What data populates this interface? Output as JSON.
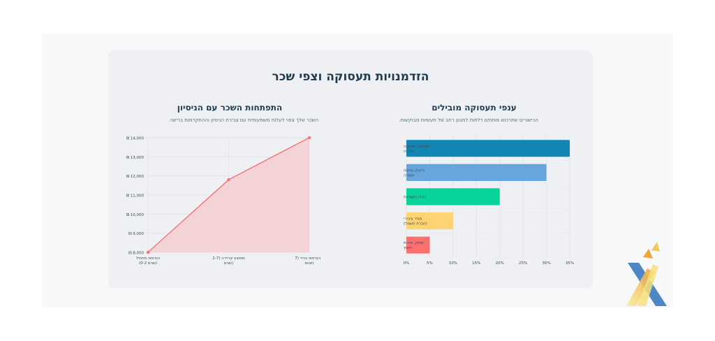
{
  "page": {
    "title": "הזדמנויות תעסוקה וצפי שכר"
  },
  "left_section": {
    "title": "התפתחות השכר עם הניסיון",
    "subtitle": "השכר שלך צפוי לעלות משמעותית עם צבירת הניסיון וההתקדמות ברישוי."
  },
  "right_section": {
    "title": "ענפי תעסוקה מובילים",
    "subtitle": "הכישורים שתרכוש פותחים דלתות למגוון רחב של תעשיות מבוקשות."
  },
  "chart_data": [
    {
      "type": "area",
      "x": [
        [
          "הנדסאי מתחיל",
          "(0-2 שנים)"
        ],
        [
          "ממוצע קריירה (2-7",
          "שנים)"
        ],
        [
          "הנדסאי בכיר (7+",
          "שנים)"
        ]
      ],
      "values": [
        8000,
        11800,
        14000
      ],
      "ylim": [
        8000,
        14000
      ],
      "yticks": [
        "₪ 8,000",
        "₪ 9,000",
        "₪ 10,000",
        "₪ 11,000",
        "₪ 12,000",
        "₪ 13,000",
        "₪ 14,000"
      ],
      "ytick_values": [
        8000,
        9000,
        10000,
        11000,
        12000,
        13000,
        14000
      ],
      "grid": true,
      "color": "#f47a7a",
      "fill": "#f4d3d6"
    },
    {
      "type": "bar",
      "orientation": "horizontal",
      "categories": [
        [
          "תעשייה, אחזקה",
          "ובקרה"
        ],
        [
          "הייטק ופיתוח",
          "חומרה"
        ],
        [
          "בנייה ותשתיות"
        ],
        [
          "מגזר ציבורי",
          "(חברת חשמל)"
        ],
        [
          "שיווק, שירות",
          "וייעוץ"
        ]
      ],
      "values": [
        35,
        30,
        20,
        10,
        5
      ],
      "colors": [
        "#1186b4",
        "#66a6dc",
        "#07d39b",
        "#fdd471",
        "#fb6f6f"
      ],
      "xlim": [
        0,
        35
      ],
      "xticks": [
        "0%",
        "5%",
        "10%",
        "15%",
        "20%",
        "25%",
        "30%",
        "35%"
      ],
      "xtick_values": [
        0,
        5,
        10,
        15,
        20,
        25,
        30,
        35
      ],
      "grid": true
    }
  ],
  "logo": {
    "icon": "arrow-x-logo-icon",
    "colors": [
      "#4f86c6",
      "#f6e27a",
      "#f2a33a"
    ]
  }
}
